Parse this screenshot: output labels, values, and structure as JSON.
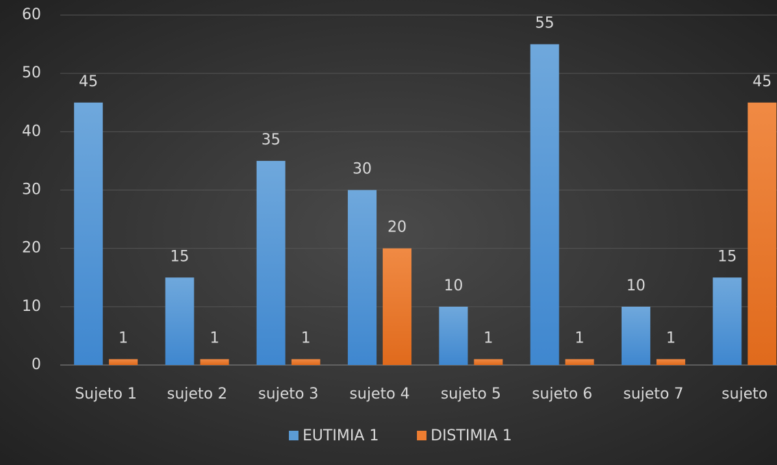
{
  "chart_data": {
    "type": "bar",
    "categories": [
      "Sujeto 1",
      "sujeto 2",
      "sujeto 3",
      "sujeto 4",
      "sujeto 5",
      "sujeto 6",
      "sujeto 7",
      "sujeto"
    ],
    "series": [
      {
        "name": "EUTIMIA 1",
        "color": "#5b9bd5",
        "values": [
          45,
          15,
          35,
          30,
          10,
          55,
          10,
          15
        ]
      },
      {
        "name": "DISTIMIA 1",
        "color": "#ed7d31",
        "values": [
          1,
          1,
          1,
          20,
          1,
          1,
          1,
          45
        ]
      }
    ],
    "ylim": [
      0,
      60
    ],
    "yticks": [
      0,
      10,
      20,
      30,
      40,
      50,
      60
    ],
    "grid": true,
    "legend": "bottom"
  }
}
